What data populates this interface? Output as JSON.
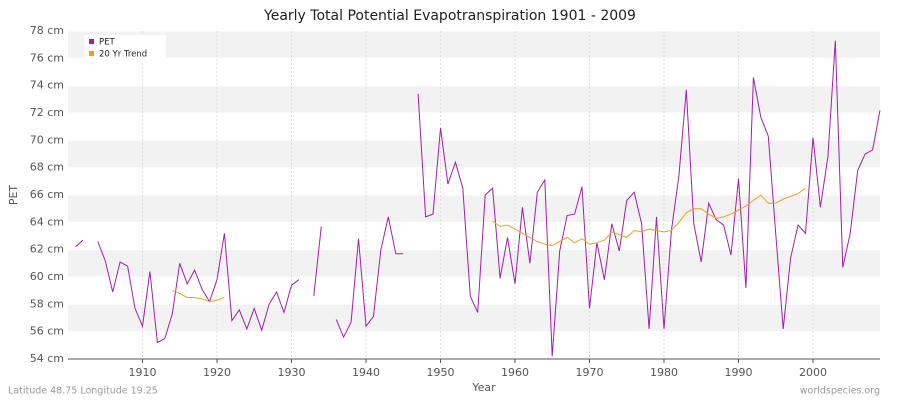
{
  "chart_data": {
    "type": "line",
    "title": "Yearly Total Potential Evapotranspiration 1901 - 2009",
    "x_label": "Year",
    "y_label": "PET",
    "footer_left": "Latitude 48.75 Longitude 19.25",
    "footer_right": "worldspecies.org",
    "x": [
      1901,
      1902,
      1903,
      1904,
      1905,
      1906,
      1907,
      1908,
      1909,
      1910,
      1911,
      1912,
      1913,
      1914,
      1915,
      1916,
      1917,
      1918,
      1919,
      1920,
      1921,
      1922,
      1923,
      1924,
      1925,
      1926,
      1927,
      1928,
      1929,
      1930,
      1931,
      1932,
      1933,
      1934,
      1935,
      1936,
      1937,
      1938,
      1939,
      1940,
      1941,
      1942,
      1943,
      1944,
      1945,
      1946,
      1947,
      1948,
      1949,
      1950,
      1951,
      1952,
      1953,
      1954,
      1955,
      1956,
      1957,
      1958,
      1959,
      1960,
      1961,
      1962,
      1963,
      1964,
      1965,
      1966,
      1967,
      1968,
      1969,
      1970,
      1971,
      1972,
      1973,
      1974,
      1975,
      1976,
      1977,
      1978,
      1979,
      1980,
      1981,
      1982,
      1983,
      1984,
      1985,
      1986,
      1987,
      1988,
      1989,
      1990,
      1991,
      1992,
      1993,
      1994,
      1995,
      1996,
      1997,
      1998,
      1999,
      2000,
      2001,
      2002,
      2003,
      2004,
      2005,
      2006,
      2007,
      2008,
      2009
    ],
    "series": [
      {
        "name": "PET",
        "color": "#a020a8",
        "values": [
          62.2,
          62.7,
          null,
          62.6,
          61.2,
          58.9,
          61.1,
          60.8,
          57.7,
          56.4,
          60.4,
          55.2,
          55.5,
          57.3,
          61.0,
          59.5,
          60.5,
          59.1,
          58.2,
          59.8,
          63.2,
          56.8,
          57.6,
          56.2,
          57.7,
          56.1,
          58.0,
          58.9,
          57.4,
          59.4,
          59.8,
          null,
          58.6,
          63.7,
          null,
          56.9,
          55.6,
          56.7,
          62.8,
          56.4,
          57.1,
          62.0,
          64.4,
          61.7,
          61.7,
          null,
          73.4,
          64.4,
          64.6,
          70.9,
          66.8,
          68.4,
          66.5,
          58.6,
          57.4,
          66.0,
          66.5,
          59.9,
          62.9,
          59.5,
          65.1,
          61.0,
          66.2,
          67.1,
          54.2,
          61.9,
          64.5,
          64.6,
          66.6,
          57.7,
          62.5,
          59.8,
          63.9,
          61.9,
          65.6,
          66.2,
          63.9,
          56.2,
          64.4,
          56.2,
          63.4,
          67.4,
          73.7,
          63.9,
          61.1,
          65.4,
          64.2,
          63.8,
          61.6,
          67.2,
          59.2,
          74.6,
          71.7,
          70.3,
          63.2,
          56.2,
          61.4,
          63.8,
          63.2,
          70.2,
          65.1,
          68.8,
          77.3,
          60.7,
          63.2,
          67.8,
          69.0,
          69.3,
          72.2
        ]
      },
      {
        "name": "20 Yr Trend",
        "color": "#f0a020",
        "values": [
          null,
          null,
          null,
          null,
          null,
          null,
          null,
          null,
          null,
          null,
          null,
          null,
          null,
          59.0,
          58.8,
          58.5,
          58.5,
          58.4,
          58.2,
          58.3,
          58.5,
          null,
          null,
          null,
          null,
          null,
          null,
          null,
          null,
          null,
          null,
          null,
          null,
          null,
          null,
          null,
          null,
          null,
          null,
          null,
          null,
          null,
          null,
          null,
          null,
          null,
          null,
          null,
          null,
          null,
          null,
          null,
          null,
          null,
          null,
          null,
          64.1,
          63.7,
          63.8,
          63.5,
          63.2,
          62.9,
          62.6,
          62.4,
          62.3,
          62.6,
          62.9,
          62.5,
          62.8,
          62.4,
          62.5,
          62.7,
          63.3,
          63.1,
          62.9,
          63.4,
          63.3,
          63.5,
          63.4,
          63.3,
          63.4,
          64.0,
          64.7,
          65.0,
          65.0,
          64.6,
          64.3,
          64.4,
          64.6,
          64.9,
          65.2,
          65.6,
          66.0,
          65.4,
          65.4,
          65.7,
          65.9,
          66.1,
          66.5,
          null,
          null,
          null,
          null,
          null,
          null,
          null,
          null,
          null,
          null
        ]
      }
    ],
    "xlim": [
      1900,
      2009
    ],
    "xticks": [
      1910,
      1920,
      1930,
      1940,
      1950,
      1960,
      1970,
      1980,
      1990,
      2000
    ],
    "ylim": [
      54,
      78
    ],
    "yticks": [
      {
        "value": 54,
        "label": "54 cm"
      },
      {
        "value": 56,
        "label": "56 cm"
      },
      {
        "value": 58,
        "label": "58 cm"
      },
      {
        "value": 60,
        "label": "60 cm"
      },
      {
        "value": 62,
        "label": "62 cm"
      },
      {
        "value": 64,
        "label": "64 cm"
      },
      {
        "value": 66,
        "label": "66 cm"
      },
      {
        "value": 68,
        "label": "68 cm"
      },
      {
        "value": 70,
        "label": "70 cm"
      },
      {
        "value": 72,
        "label": "72 cm"
      },
      {
        "value": 74,
        "label": "74 cm"
      },
      {
        "value": 76,
        "label": "76 cm"
      },
      {
        "value": 78,
        "label": "78 cm"
      }
    ],
    "grid": true,
    "legend": "upper-left"
  }
}
